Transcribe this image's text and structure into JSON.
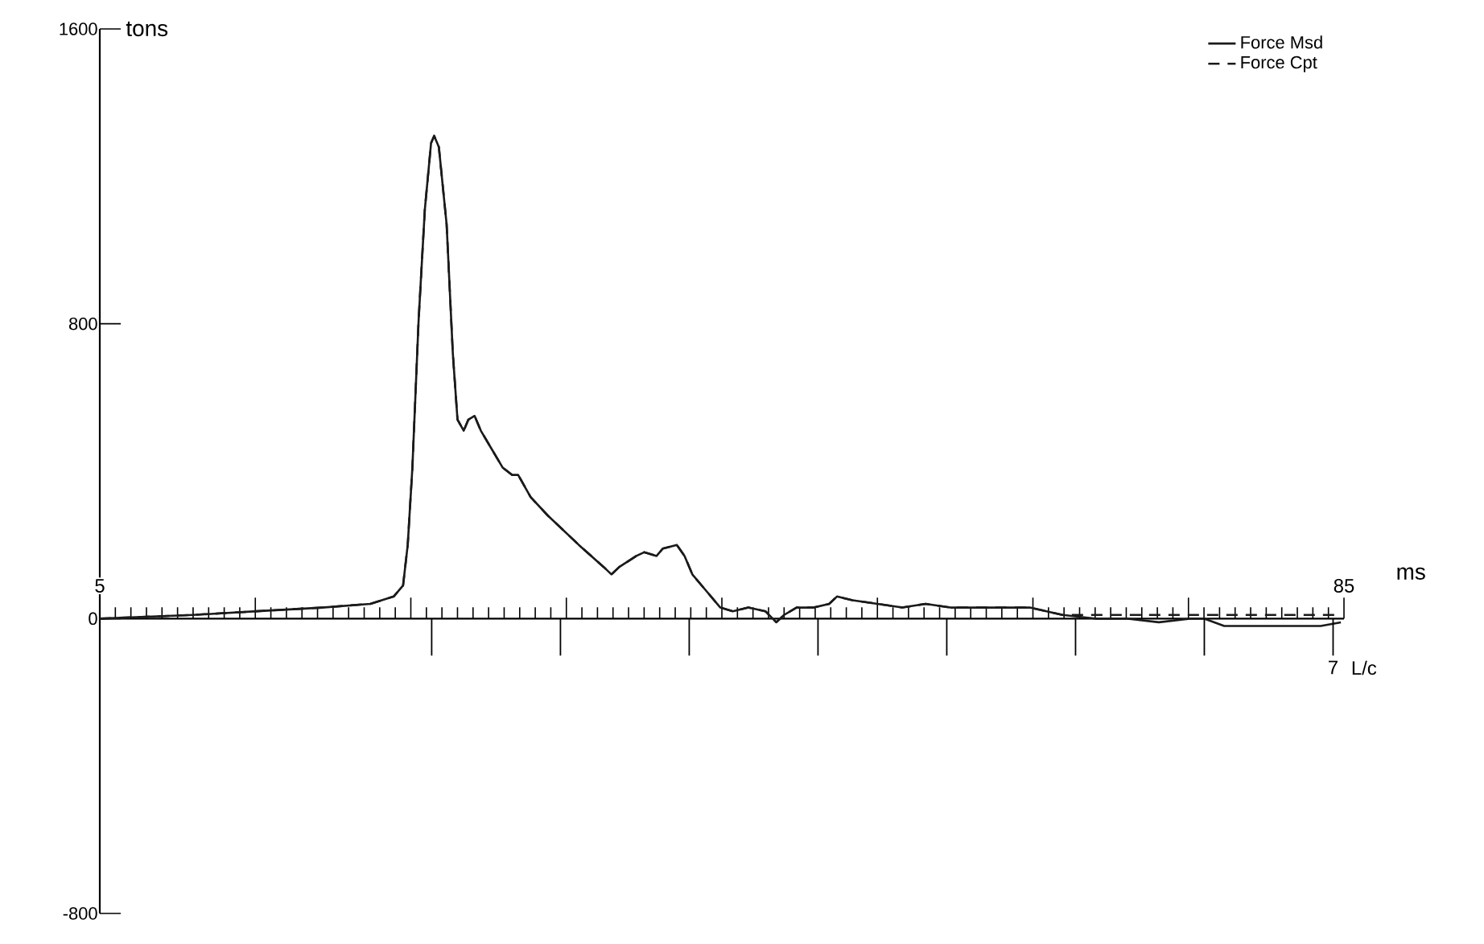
{
  "chart_data": {
    "type": "line",
    "ylabel": "tons",
    "xlabel": "ms",
    "x2label": "L/c",
    "x": [
      5.0,
      11.0,
      15.1,
      19.3,
      22.4,
      23.9,
      24.5,
      24.8,
      25.1,
      25.5,
      25.9,
      26.3,
      26.5,
      26.8,
      27.3,
      27.7,
      28.0,
      28.4,
      28.7,
      29.1,
      29.5,
      30.2,
      30.9,
      31.5,
      31.9,
      32.7,
      33.8,
      35.8,
      37.4,
      37.9,
      38.4,
      39.5,
      40.0,
      40.8,
      41.2,
      42.1,
      42.6,
      43.1,
      44.1,
      44.9,
      45.7,
      46.7,
      47.8,
      48.5,
      49.0,
      49.8,
      50.9,
      51.9,
      52.4,
      53.4,
      55.0,
      56.6,
      58.1,
      59.7,
      61.2,
      62.2,
      63.3,
      64.8,
      66.9,
      69.0,
      71.0,
      73.1,
      75.2,
      76.0,
      77.3,
      79.3,
      81.4,
      83.5,
      84.8
    ],
    "series": [
      {
        "name": "Force Msd",
        "color": "#1a1a1a",
        "line_style": "solid",
        "values": [
          0,
          10,
          20,
          30,
          40,
          60,
          90,
          200,
          410,
          810,
          1110,
          1290,
          1310,
          1280,
          1070,
          720,
          540,
          510,
          540,
          550,
          510,
          460,
          410,
          390,
          390,
          330,
          280,
          200,
          140,
          120,
          140,
          170,
          180,
          170,
          190,
          200,
          170,
          120,
          70,
          30,
          20,
          30,
          20,
          -10,
          10,
          30,
          30,
          40,
          60,
          50,
          40,
          30,
          40,
          30,
          30,
          30,
          30,
          30,
          10,
          0,
          0,
          -10,
          0,
          0,
          -20,
          -20,
          -20,
          -20,
          -10
        ]
      },
      {
        "name": "Force Cpt",
        "color": "#1a1a1a",
        "line_style": "dashed",
        "values": [
          0,
          10,
          20,
          30,
          40,
          60,
          90,
          200,
          410,
          810,
          1110,
          1290,
          1310,
          1280,
          1070,
          720,
          540,
          510,
          540,
          550,
          510,
          460,
          410,
          390,
          390,
          330,
          280,
          200,
          140,
          120,
          140,
          170,
          180,
          170,
          190,
          200,
          170,
          120,
          70,
          30,
          20,
          30,
          20,
          -10,
          10,
          30,
          30,
          40,
          60,
          50,
          40,
          30,
          40,
          30,
          30,
          30,
          30,
          30,
          10,
          10,
          10,
          10,
          10,
          10,
          10,
          10,
          10,
          10,
          10
        ]
      }
    ],
    "xlim": [
      5,
      85
    ],
    "xticks": [
      5,
      {
        "value": 15,
        "label": null
      },
      {
        "value": 25,
        "label": null
      },
      {
        "value": 35,
        "label": null
      },
      {
        "value": 45,
        "label": null
      },
      {
        "value": 55,
        "label": null
      },
      {
        "value": 65,
        "label": null
      },
      {
        "value": 75,
        "label": null
      },
      85
    ],
    "annotations": [
      {
        "text": "7",
        "x": 84.3,
        "y": 0
      }
    ],
    "ylim": [
      -800,
      1600
    ],
    "yticks": [
      1600,
      800,
      0,
      -800
    ],
    "legend": "top right"
  }
}
